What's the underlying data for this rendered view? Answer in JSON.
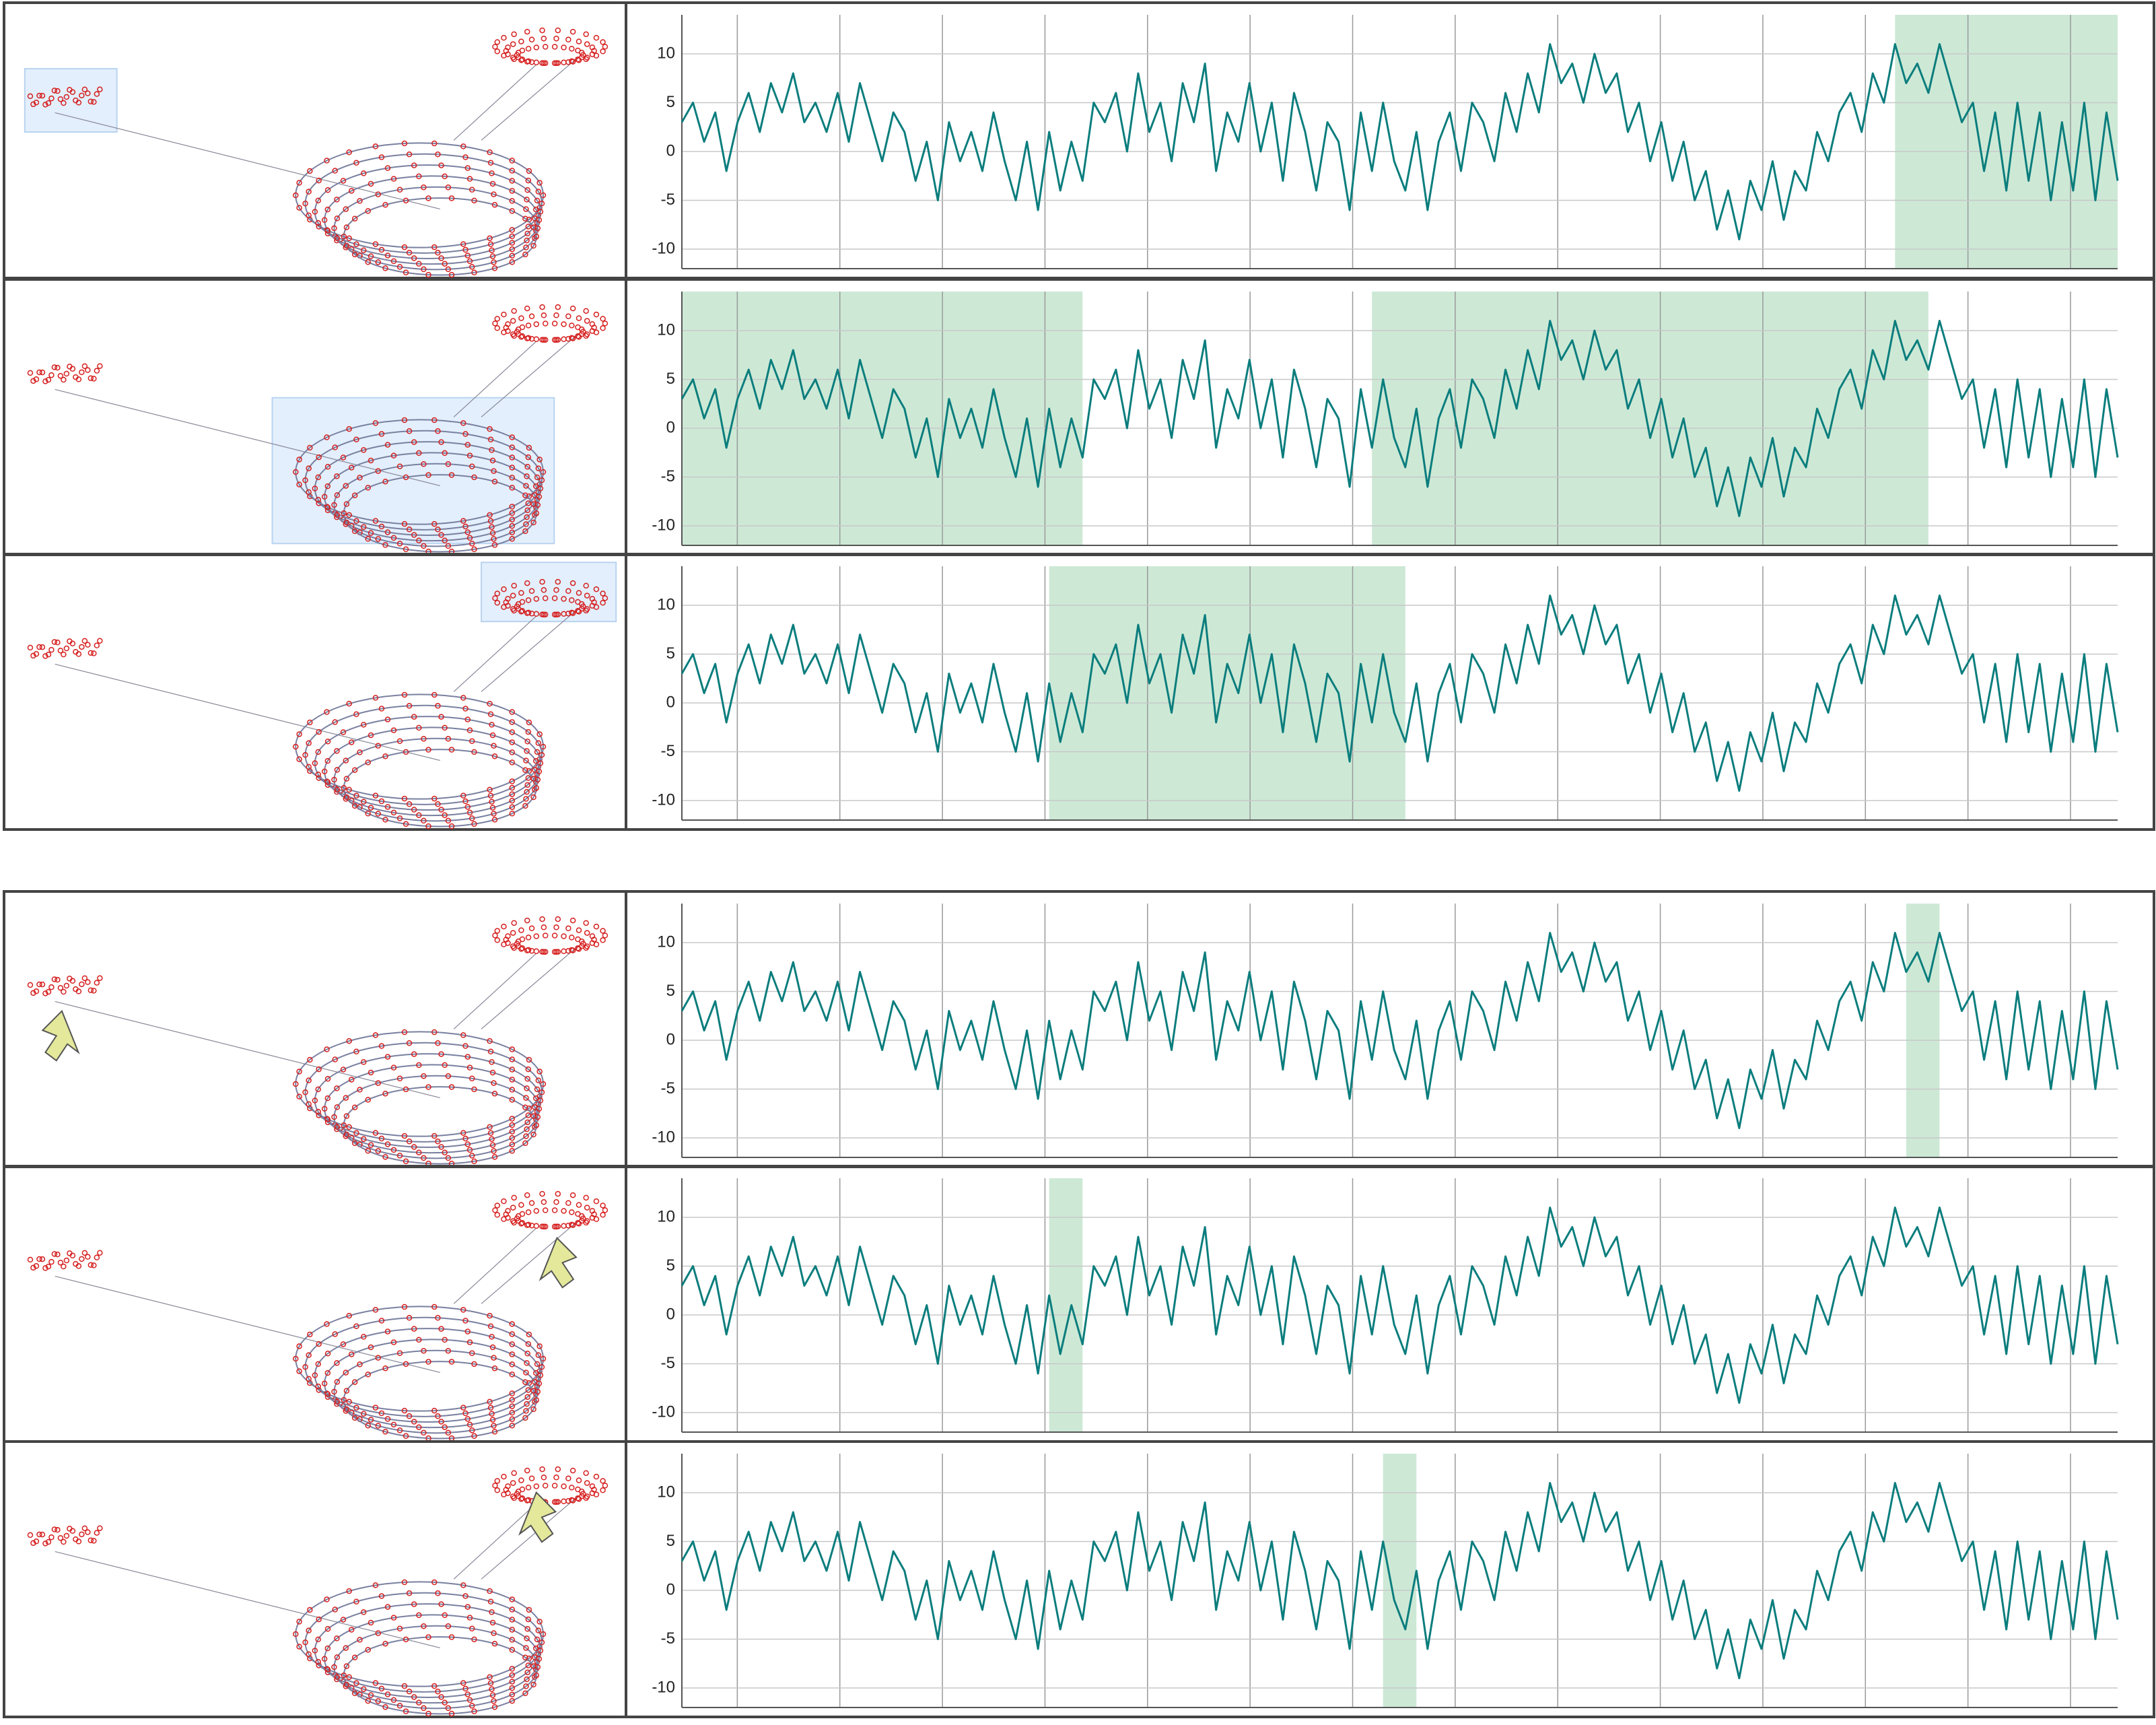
{
  "chart_data": [
    {
      "type": "line",
      "color": "#0b7d7d",
      "ylim": [
        -12,
        14
      ],
      "yticks": [
        -10,
        -5,
        0,
        5,
        10
      ],
      "xlim": [
        0,
        129
      ],
      "grid": true,
      "highlight_color": "#cde9d6",
      "highlights": [
        [
          109,
          129
        ]
      ],
      "values": [
        3,
        5,
        1,
        4,
        -2,
        3,
        6,
        2,
        7,
        4,
        8,
        3,
        5,
        2,
        6,
        1,
        7,
        3,
        -1,
        4,
        2,
        -3,
        1,
        -5,
        3,
        -1,
        2,
        -2,
        4,
        -1,
        -5,
        1,
        -6,
        2,
        -4,
        1,
        -3,
        5,
        3,
        6,
        0,
        8,
        2,
        5,
        -1,
        7,
        3,
        9,
        -2,
        4,
        1,
        7,
        0,
        5,
        -3,
        6,
        2,
        -4,
        3,
        1,
        -6,
        4,
        -2,
        5,
        -1,
        -4,
        2,
        -6,
        1,
        4,
        -2,
        5,
        3,
        -1,
        6,
        2,
        8,
        4,
        11,
        7,
        9,
        5,
        10,
        6,
        8,
        2,
        5,
        -1,
        3,
        -3,
        1,
        -5,
        -2,
        -8,
        -4,
        -9,
        -3,
        -6,
        -1,
        -7,
        -2,
        -4,
        2,
        -1,
        4,
        6,
        2,
        8,
        5,
        11,
        7,
        9,
        6,
        11,
        7,
        3,
        5,
        -2,
        4,
        -4,
        5,
        -3,
        4,
        -5,
        3,
        -4,
        5,
        -5,
        4,
        -3
      ]
    },
    {
      "type": "line",
      "color": "#0b7d7d",
      "ylim": [
        -12,
        14
      ],
      "yticks": [
        -10,
        -5,
        0,
        5,
        10
      ],
      "xlim": [
        0,
        129
      ],
      "grid": true,
      "highlight_color": "#cde9d6",
      "highlights": [
        [
          0,
          36
        ],
        [
          62,
          112
        ]
      ],
      "values": [
        3,
        5,
        1,
        4,
        -2,
        3,
        6,
        2,
        7,
        4,
        8,
        3,
        5,
        2,
        6,
        1,
        7,
        3,
        -1,
        4,
        2,
        -3,
        1,
        -5,
        3,
        -1,
        2,
        -2,
        4,
        -1,
        -5,
        1,
        -6,
        2,
        -4,
        1,
        -3,
        5,
        3,
        6,
        0,
        8,
        2,
        5,
        -1,
        7,
        3,
        9,
        -2,
        4,
        1,
        7,
        0,
        5,
        -3,
        6,
        2,
        -4,
        3,
        1,
        -6,
        4,
        -2,
        5,
        -1,
        -4,
        2,
        -6,
        1,
        4,
        -2,
        5,
        3,
        -1,
        6,
        2,
        8,
        4,
        11,
        7,
        9,
        5,
        10,
        6,
        8,
        2,
        5,
        -1,
        3,
        -3,
        1,
        -5,
        -2,
        -8,
        -4,
        -9,
        -3,
        -6,
        -1,
        -7,
        -2,
        -4,
        2,
        -1,
        4,
        6,
        2,
        8,
        5,
        11,
        7,
        9,
        6,
        11,
        7,
        3,
        5,
        -2,
        4,
        -4,
        5,
        -3,
        4,
        -5,
        3,
        -4,
        5,
        -5,
        4,
        -3
      ]
    },
    {
      "type": "line",
      "color": "#0b7d7d",
      "ylim": [
        -12,
        14
      ],
      "yticks": [
        -10,
        -5,
        0,
        5,
        10
      ],
      "xlim": [
        0,
        129
      ],
      "grid": true,
      "highlight_color": "#cde9d6",
      "highlights": [
        [
          33,
          65
        ]
      ],
      "values": [
        3,
        5,
        1,
        4,
        -2,
        3,
        6,
        2,
        7,
        4,
        8,
        3,
        5,
        2,
        6,
        1,
        7,
        3,
        -1,
        4,
        2,
        -3,
        1,
        -5,
        3,
        -1,
        2,
        -2,
        4,
        -1,
        -5,
        1,
        -6,
        2,
        -4,
        1,
        -3,
        5,
        3,
        6,
        0,
        8,
        2,
        5,
        -1,
        7,
        3,
        9,
        -2,
        4,
        1,
        7,
        0,
        5,
        -3,
        6,
        2,
        -4,
        3,
        1,
        -6,
        4,
        -2,
        5,
        -1,
        -4,
        2,
        -6,
        1,
        4,
        -2,
        5,
        3,
        -1,
        6,
        2,
        8,
        4,
        11,
        7,
        9,
        5,
        10,
        6,
        8,
        2,
        5,
        -1,
        3,
        -3,
        1,
        -5,
        -2,
        -8,
        -4,
        -9,
        -3,
        -6,
        -1,
        -7,
        -2,
        -4,
        2,
        -1,
        4,
        6,
        2,
        8,
        5,
        11,
        7,
        9,
        6,
        11,
        7,
        3,
        5,
        -2,
        4,
        -4,
        5,
        -3,
        4,
        -5,
        3,
        -4,
        5,
        -5,
        4,
        -3
      ]
    },
    {
      "type": "line",
      "color": "#0b7d7d",
      "ylim": [
        -12,
        14
      ],
      "yticks": [
        -10,
        -5,
        0,
        5,
        10
      ],
      "xlim": [
        0,
        129
      ],
      "grid": true,
      "highlight_color": "#cde9d6",
      "highlights": [
        [
          110,
          113
        ]
      ],
      "values": [
        3,
        5,
        1,
        4,
        -2,
        3,
        6,
        2,
        7,
        4,
        8,
        3,
        5,
        2,
        6,
        1,
        7,
        3,
        -1,
        4,
        2,
        -3,
        1,
        -5,
        3,
        -1,
        2,
        -2,
        4,
        -1,
        -5,
        1,
        -6,
        2,
        -4,
        1,
        -3,
        5,
        3,
        6,
        0,
        8,
        2,
        5,
        -1,
        7,
        3,
        9,
        -2,
        4,
        1,
        7,
        0,
        5,
        -3,
        6,
        2,
        -4,
        3,
        1,
        -6,
        4,
        -2,
        5,
        -1,
        -4,
        2,
        -6,
        1,
        4,
        -2,
        5,
        3,
        -1,
        6,
        2,
        8,
        4,
        11,
        7,
        9,
        5,
        10,
        6,
        8,
        2,
        5,
        -1,
        3,
        -3,
        1,
        -5,
        -2,
        -8,
        -4,
        -9,
        -3,
        -6,
        -1,
        -7,
        -2,
        -4,
        2,
        -1,
        4,
        6,
        2,
        8,
        5,
        11,
        7,
        9,
        6,
        11,
        7,
        3,
        5,
        -2,
        4,
        -4,
        5,
        -3,
        4,
        -5,
        3,
        -4,
        5,
        -5,
        4,
        -3
      ]
    },
    {
      "type": "line",
      "color": "#0b7d7d",
      "ylim": [
        -12,
        14
      ],
      "yticks": [
        -10,
        -5,
        0,
        5,
        10
      ],
      "xlim": [
        0,
        129
      ],
      "grid": true,
      "highlight_color": "#cde9d6",
      "highlights": [
        [
          33,
          36
        ]
      ],
      "values": [
        3,
        5,
        1,
        4,
        -2,
        3,
        6,
        2,
        7,
        4,
        8,
        3,
        5,
        2,
        6,
        1,
        7,
        3,
        -1,
        4,
        2,
        -3,
        1,
        -5,
        3,
        -1,
        2,
        -2,
        4,
        -1,
        -5,
        1,
        -6,
        2,
        -4,
        1,
        -3,
        5,
        3,
        6,
        0,
        8,
        2,
        5,
        -1,
        7,
        3,
        9,
        -2,
        4,
        1,
        7,
        0,
        5,
        -3,
        6,
        2,
        -4,
        3,
        1,
        -6,
        4,
        -2,
        5,
        -1,
        -4,
        2,
        -6,
        1,
        4,
        -2,
        5,
        3,
        -1,
        6,
        2,
        8,
        4,
        11,
        7,
        9,
        5,
        10,
        6,
        8,
        2,
        5,
        -1,
        3,
        -3,
        1,
        -5,
        -2,
        -8,
        -4,
        -9,
        -3,
        -6,
        -1,
        -7,
        -2,
        -4,
        2,
        -1,
        4,
        6,
        2,
        8,
        5,
        11,
        7,
        9,
        6,
        11,
        7,
        3,
        5,
        -2,
        4,
        -4,
        5,
        -3,
        4,
        -5,
        3,
        -4,
        5,
        -5,
        4,
        -3
      ]
    },
    {
      "type": "line",
      "color": "#0b7d7d",
      "ylim": [
        -12,
        14
      ],
      "yticks": [
        -10,
        -5,
        0,
        5,
        10
      ],
      "xlim": [
        0,
        129
      ],
      "grid": true,
      "highlight_color": "#cde9d6",
      "highlights": [
        [
          63,
          66
        ]
      ],
      "values": [
        3,
        5,
        1,
        4,
        -2,
        3,
        6,
        2,
        7,
        4,
        8,
        3,
        5,
        2,
        6,
        1,
        7,
        3,
        -1,
        4,
        2,
        -3,
        1,
        -5,
        3,
        -1,
        2,
        -2,
        4,
        -1,
        -5,
        1,
        -6,
        2,
        -4,
        1,
        -3,
        5,
        3,
        6,
        0,
        8,
        2,
        5,
        -1,
        7,
        3,
        9,
        -2,
        4,
        1,
        7,
        0,
        5,
        -3,
        6,
        2,
        -4,
        3,
        1,
        -6,
        4,
        -2,
        5,
        -1,
        -4,
        2,
        -6,
        1,
        4,
        -2,
        5,
        3,
        -1,
        6,
        2,
        8,
        4,
        11,
        7,
        9,
        5,
        10,
        6,
        8,
        2,
        5,
        -1,
        3,
        -3,
        1,
        -5,
        -2,
        -8,
        -4,
        -9,
        -3,
        -6,
        -1,
        -7,
        -2,
        -4,
        2,
        -1,
        4,
        6,
        2,
        8,
        5,
        11,
        7,
        9,
        6,
        11,
        7,
        3,
        5,
        -2,
        4,
        -4,
        5,
        -3,
        4,
        -5,
        3,
        -4,
        5,
        -5,
        4,
        -3
      ]
    }
  ]
}
